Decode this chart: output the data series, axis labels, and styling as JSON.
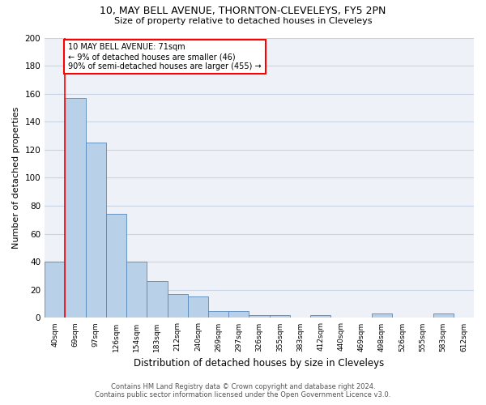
{
  "title_line1": "10, MAY BELL AVENUE, THORNTON-CLEVELEYS, FY5 2PN",
  "title_line2": "Size of property relative to detached houses in Cleveleys",
  "xlabel": "Distribution of detached houses by size in Cleveleys",
  "ylabel": "Number of detached properties",
  "categories": [
    "40sqm",
    "69sqm",
    "97sqm",
    "126sqm",
    "154sqm",
    "183sqm",
    "212sqm",
    "240sqm",
    "269sqm",
    "297sqm",
    "326sqm",
    "355sqm",
    "383sqm",
    "412sqm",
    "440sqm",
    "469sqm",
    "498sqm",
    "526sqm",
    "555sqm",
    "583sqm",
    "612sqm"
  ],
  "values": [
    40,
    157,
    125,
    74,
    40,
    26,
    17,
    15,
    5,
    5,
    2,
    2,
    0,
    2,
    0,
    0,
    3,
    0,
    0,
    3,
    0
  ],
  "bar_color": "#b8d0e8",
  "bar_edge_color": "#5588bb",
  "grid_color": "#c8d4e4",
  "background_color": "#eef2f8",
  "annotation_line1": "10 MAY BELL AVENUE: 71sqm",
  "annotation_line2": "← 9% of detached houses are smaller (46)",
  "annotation_line3": "90% of semi-detached houses are larger (455) →",
  "annotation_box_color": "red",
  "property_line_x": 0.5,
  "ylim": [
    0,
    200
  ],
  "yticks": [
    0,
    20,
    40,
    60,
    80,
    100,
    120,
    140,
    160,
    180,
    200
  ],
  "footer_line1": "Contains HM Land Registry data © Crown copyright and database right 2024.",
  "footer_line2": "Contains public sector information licensed under the Open Government Licence v3.0."
}
